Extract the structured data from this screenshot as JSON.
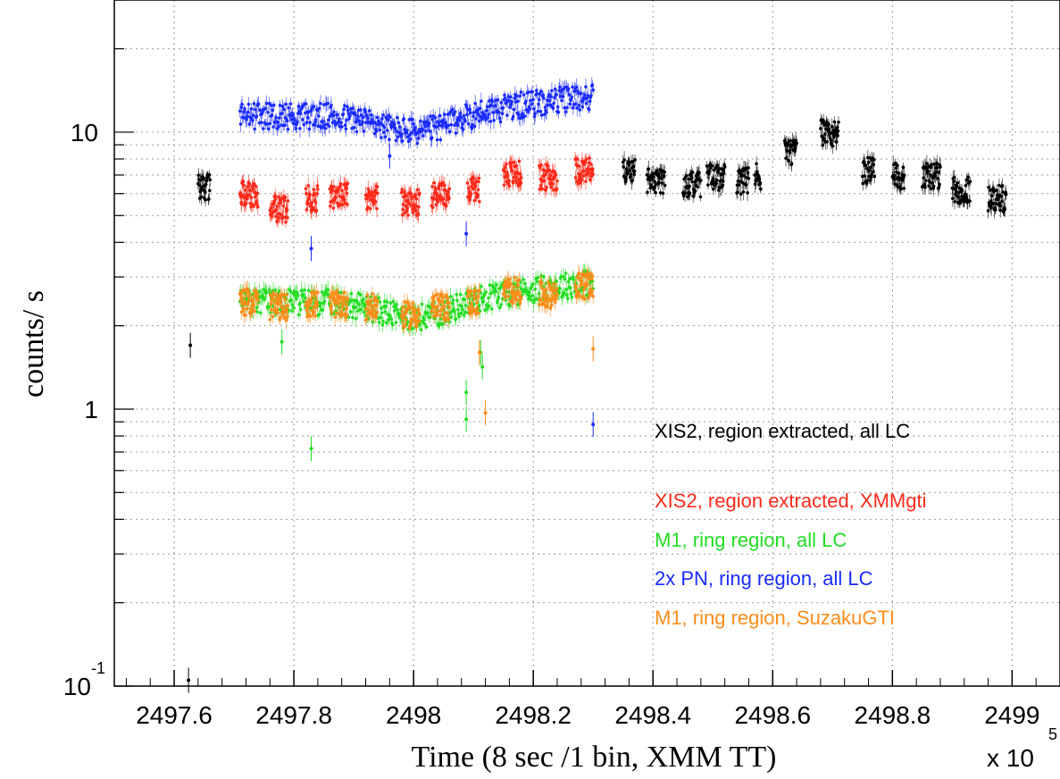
{
  "chart_data": {
    "type": "scatter",
    "title": "",
    "xlabel": "Time (8 sec /1 bin, XMM TT)",
    "ylabel": "counts/ s",
    "x_multiplier_label": "x 10",
    "x_multiplier_exp": "5",
    "xlim": [
      2497.5,
      2499.08
    ],
    "ylim": [
      0.1,
      30
    ],
    "y_scale": "log",
    "grid": true,
    "legend_position": "right",
    "x_ticks": [
      {
        "value": 2497.6,
        "label": "2497.6"
      },
      {
        "value": 2497.8,
        "label": "2497.8"
      },
      {
        "value": 2498.0,
        "label": "2498"
      },
      {
        "value": 2498.2,
        "label": "2498.2"
      },
      {
        "value": 2498.4,
        "label": "2498.4"
      },
      {
        "value": 2498.6,
        "label": "2498.6"
      },
      {
        "value": 2498.8,
        "label": "2498.8"
      },
      {
        "value": 2499.0,
        "label": "2499"
      }
    ],
    "y_ticks": [
      {
        "value": 0.1,
        "base": "10",
        "exp": "-1"
      },
      {
        "value": 1,
        "base": "1",
        "exp": ""
      },
      {
        "value": 10,
        "base": "10",
        "exp": ""
      }
    ],
    "series": [
      {
        "name": "XIS2, region extracted, all LC",
        "color": "#000000",
        "segments": [
          [
            2497.64,
            2497.66,
            6.4
          ],
          [
            2498.35,
            2498.37,
            7.3
          ],
          [
            2498.39,
            2498.42,
            6.7
          ],
          [
            2498.45,
            2498.48,
            6.5
          ],
          [
            2498.49,
            2498.52,
            6.9
          ],
          [
            2498.54,
            2498.56,
            6.7
          ],
          [
            2498.57,
            2498.58,
            7.0
          ],
          [
            2498.62,
            2498.64,
            8.5
          ],
          [
            2498.68,
            2498.71,
            10.0
          ],
          [
            2498.75,
            2498.77,
            7.3
          ],
          [
            2498.8,
            2498.82,
            7.0
          ],
          [
            2498.85,
            2498.88,
            7.0
          ],
          [
            2498.9,
            2498.93,
            6.2
          ],
          [
            2498.96,
            2498.99,
            5.8
          ]
        ],
        "outliers": [
          [
            2497.627,
            1.7
          ],
          [
            2497.624,
            0.105
          ]
        ]
      },
      {
        "name": "XIS2, region extracted, XMMgti",
        "color": "#ff2a1a",
        "segments": [
          [
            2497.71,
            2497.74,
            6.0
          ],
          [
            2497.76,
            2497.79,
            5.3
          ],
          [
            2497.82,
            2497.84,
            5.8
          ],
          [
            2497.86,
            2497.89,
            5.9
          ],
          [
            2497.92,
            2497.94,
            5.9
          ],
          [
            2497.98,
            2498.01,
            5.6
          ],
          [
            2498.03,
            2498.06,
            6.0
          ],
          [
            2498.09,
            2498.11,
            6.3
          ],
          [
            2498.15,
            2498.18,
            7.1
          ],
          [
            2498.21,
            2498.24,
            6.9
          ],
          [
            2498.27,
            2498.3,
            7.3
          ]
        ],
        "outliers": []
      },
      {
        "name": "M1, ring region, all LC",
        "color": "#22dd22",
        "segments": [
          [
            2497.71,
            2498.3,
            2.45
          ]
        ],
        "outliers": [
          [
            2497.829,
            0.72
          ],
          [
            2498.088,
            1.15
          ],
          [
            2498.088,
            0.92
          ],
          [
            2498.112,
            1.6
          ],
          [
            2498.115,
            1.42
          ],
          [
            2497.78,
            1.75
          ]
        ]
      },
      {
        "name": "2x PN, ring region, all LC",
        "color": "#1a2bff",
        "segments": [
          [
            2497.71,
            2498.3,
            11.5
          ]
        ],
        "outliers": [
          [
            2497.829,
            3.8
          ],
          [
            2498.088,
            4.3
          ],
          [
            2497.96,
            8.2
          ],
          [
            2498.3,
            0.88
          ]
        ]
      },
      {
        "name": "M1, ring region, SuzakuGTI",
        "color": "#ff8c1a",
        "segments": [
          [
            2497.71,
            2497.74,
            2.45
          ],
          [
            2497.76,
            2497.79,
            2.35
          ],
          [
            2497.82,
            2497.84,
            2.4
          ],
          [
            2497.86,
            2497.89,
            2.4
          ],
          [
            2497.92,
            2497.94,
            2.35
          ],
          [
            2497.98,
            2498.01,
            2.2
          ],
          [
            2498.03,
            2498.06,
            2.35
          ],
          [
            2498.09,
            2498.11,
            2.45
          ],
          [
            2498.15,
            2498.18,
            2.7
          ],
          [
            2498.21,
            2498.24,
            2.6
          ],
          [
            2498.27,
            2498.3,
            2.8
          ]
        ],
        "outliers": [
          [
            2498.12,
            0.97
          ],
          [
            2498.3,
            1.65
          ],
          [
            2498.11,
            1.6
          ]
        ]
      }
    ]
  }
}
